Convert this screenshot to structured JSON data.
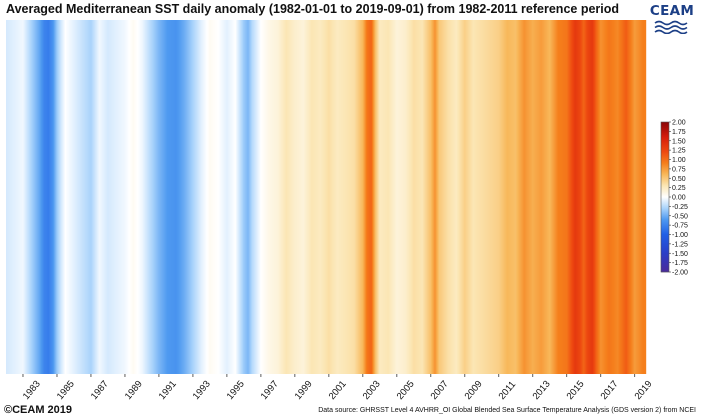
{
  "title": "Averaged Mediterranean SST daily anomaly (1982-01-01 to 2019-09-01) from 1982-2011 reference period",
  "logo": {
    "text": "CEAM",
    "icon": "waves-icon",
    "color": "#1c3f86"
  },
  "footer": {
    "copyright": "©CEAM 2019",
    "source": "Data source: GHRSST Level 4 AVHRR_OI Global Blended Sea Surface Temperature Analysis (GDS version 2) from NCEI"
  },
  "chart_data": {
    "type": "heatmap",
    "title": "Averaged Mediterranean SST daily anomaly (1982-01-01 to 2019-09-01) from 1982-2011 reference period",
    "xlabel": "",
    "ylabel": "",
    "x_range": [
      "1982-01-01",
      "2019-09-01"
    ],
    "x_tick_labels": [
      "1983",
      "1985",
      "1987",
      "1989",
      "1991",
      "1993",
      "1995",
      "1997",
      "1999",
      "2001",
      "2003",
      "2005",
      "2007",
      "2009",
      "2011",
      "2013",
      "2015",
      "2017",
      "2019"
    ],
    "grid": false,
    "colorbar": {
      "min": -2.0,
      "max": 2.0,
      "tick_labels": [
        "2.00",
        "1.75",
        "1.50",
        "1.25",
        "1.00",
        "0.75",
        "0.50",
        "0.25",
        "0.00",
        "-0.25",
        "-0.50",
        "-0.75",
        "-1.00",
        "-1.25",
        "-1.50",
        "-1.75",
        "-2.00"
      ],
      "colors": [
        {
          "value": -2.0,
          "color": "#4b2a9a"
        },
        {
          "value": -1.5,
          "color": "#2a3ec7"
        },
        {
          "value": -1.0,
          "color": "#1f5fe6"
        },
        {
          "value": -0.6,
          "color": "#4f9af0"
        },
        {
          "value": -0.3,
          "color": "#a9d3fb"
        },
        {
          "value": 0.0,
          "color": "#ffffff"
        },
        {
          "value": 0.3,
          "color": "#fbe6b4"
        },
        {
          "value": 0.6,
          "color": "#f8b85a"
        },
        {
          "value": 0.9,
          "color": "#f57f1c"
        },
        {
          "value": 1.2,
          "color": "#ee4a10"
        },
        {
          "value": 1.6,
          "color": "#d61c0c"
        },
        {
          "value": 2.0,
          "color": "#8a0608"
        }
      ]
    },
    "series": [
      {
        "x": [
          "1982-01-01",
          "1982-07-01",
          "1983-01-01",
          "1983-07-01",
          "1984-01-01",
          "1984-04-01",
          "1984-07-01",
          "1984-10-01",
          "1985-01-01",
          "1985-04-01",
          "1985-07-01",
          "1986-01-01",
          "1986-07-01",
          "1987-01-01",
          "1987-07-01",
          "1988-01-01",
          "1988-07-01",
          "1989-01-01",
          "1989-07-01",
          "1990-01-01",
          "1990-07-01",
          "1991-01-01",
          "1991-07-01",
          "1992-01-01",
          "1992-07-01",
          "1993-01-01",
          "1993-07-01",
          "1994-01-01",
          "1994-07-01",
          "1995-01-01",
          "1995-07-01",
          "1996-01-01",
          "1996-04-01",
          "1996-07-01",
          "1997-01-01",
          "1997-07-01",
          "1998-01-01",
          "1998-07-01",
          "1999-01-01",
          "1999-07-01",
          "2000-01-01",
          "2000-07-01",
          "2001-01-01",
          "2001-07-01",
          "2002-01-01",
          "2002-07-01",
          "2003-01-01",
          "2003-04-01",
          "2003-07-01",
          "2003-10-01",
          "2004-01-01",
          "2004-07-01",
          "2005-01-01",
          "2005-07-01",
          "2006-01-01",
          "2006-07-01",
          "2007-01-01",
          "2007-04-01",
          "2007-07-01",
          "2008-01-01",
          "2008-07-01",
          "2009-01-01",
          "2009-07-01",
          "2010-01-01",
          "2010-07-01",
          "2011-01-01",
          "2011-07-01",
          "2012-01-01",
          "2012-07-01",
          "2013-01-01",
          "2013-07-01",
          "2014-01-01",
          "2014-07-01",
          "2015-01-01",
          "2015-04-01",
          "2015-07-01",
          "2015-10-01",
          "2016-01-01",
          "2016-04-01",
          "2016-07-01",
          "2016-10-01",
          "2017-01-01",
          "2017-07-01",
          "2018-01-01",
          "2018-07-01",
          "2019-01-01",
          "2019-07-01"
        ],
        "y": [
          -0.15,
          -0.1,
          -0.05,
          -0.3,
          -0.55,
          -0.75,
          -0.8,
          -0.65,
          -0.35,
          -0.15,
          0.0,
          -0.1,
          -0.2,
          -0.3,
          -0.05,
          -0.15,
          -0.1,
          -0.05,
          0.05,
          -0.05,
          -0.25,
          -0.45,
          -0.6,
          -0.65,
          -0.5,
          -0.3,
          -0.1,
          0.05,
          0.0,
          -0.1,
          0.0,
          -0.35,
          -0.45,
          -0.25,
          0.0,
          0.1,
          0.15,
          0.3,
          0.2,
          0.15,
          0.3,
          0.25,
          0.35,
          0.25,
          0.3,
          0.35,
          0.6,
          0.95,
          1.05,
          0.55,
          0.25,
          0.3,
          0.15,
          0.2,
          0.35,
          0.3,
          0.55,
          0.8,
          0.5,
          0.35,
          0.25,
          0.45,
          0.3,
          0.35,
          0.4,
          0.45,
          0.6,
          0.55,
          0.8,
          0.65,
          0.75,
          0.6,
          0.9,
          0.95,
          1.15,
          1.35,
          1.25,
          1.05,
          1.25,
          1.35,
          1.05,
          0.8,
          0.95,
          0.85,
          1.1,
          0.75,
          0.9
        ]
      }
    ]
  }
}
